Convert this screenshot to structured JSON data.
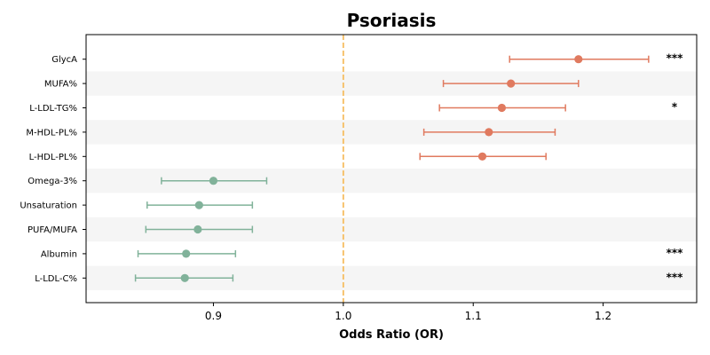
{
  "chart_data": {
    "type": "forest",
    "title": "Psoriasis",
    "xlabel": "Odds Ratio (OR)",
    "ylabel": "",
    "xlim": [
      0.802,
      1.272
    ],
    "xticks": [
      0.9,
      1.0,
      1.1,
      1.2
    ],
    "xtick_labels": [
      "0.9",
      "1.0",
      "1.1",
      "1.2"
    ],
    "reference_line": 1.0,
    "grid": false,
    "colors": {
      "increased": "#e07a5f",
      "decreased": "#81b29a",
      "reference": "#f6bd60",
      "stripe": "#f5f5f5"
    },
    "categories": [
      "GlycA",
      "MUFA%",
      "L-LDL-TG%",
      "M-HDL-PL%",
      "L-HDL-PL%",
      "Omega-3%",
      "Unsaturation",
      "PUFA/MUFA",
      "Albumin",
      "L-LDL-C%"
    ],
    "or": [
      1.181,
      1.129,
      1.122,
      1.112,
      1.107,
      0.9,
      0.889,
      0.888,
      0.879,
      0.878
    ],
    "ci_low": [
      1.128,
      1.077,
      1.074,
      1.062,
      1.059,
      0.86,
      0.849,
      0.848,
      0.842,
      0.84
    ],
    "ci_high": [
      1.235,
      1.181,
      1.171,
      1.163,
      1.156,
      0.941,
      0.93,
      0.93,
      0.917,
      0.915
    ],
    "significance": [
      "***",
      "",
      "*",
      "",
      "",
      "",
      "",
      "",
      "***",
      "***"
    ]
  }
}
